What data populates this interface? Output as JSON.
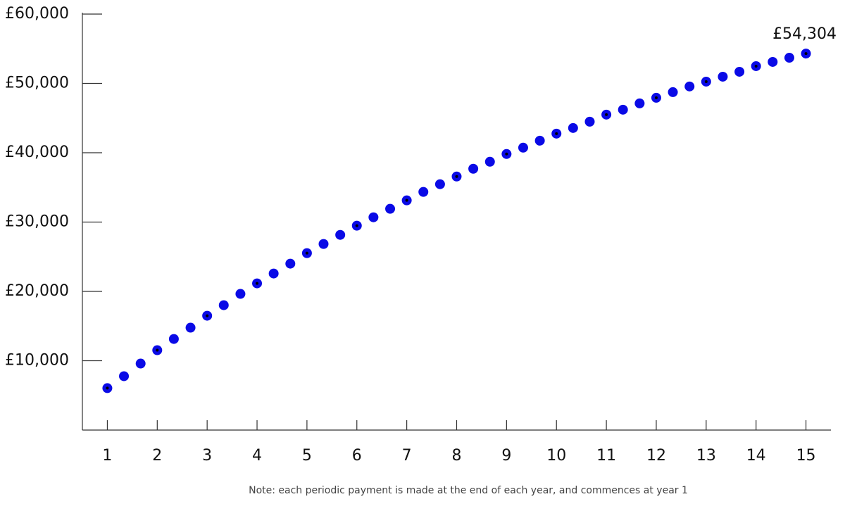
{
  "chart_data": {
    "type": "scatter",
    "note": "Note: each periodic payment is made at the end of each year, and commences at year 1",
    "x": [
      1,
      1.333,
      1.667,
      2,
      2.333,
      2.667,
      3,
      3.333,
      3.667,
      4,
      4.333,
      4.667,
      5,
      5.333,
      5.667,
      6,
      6.333,
      6.667,
      7,
      7.333,
      7.667,
      8,
      8.333,
      8.667,
      9,
      9.333,
      9.667,
      10,
      10.333,
      10.667,
      11,
      11.333,
      11.667,
      12,
      12.333,
      12.667,
      13,
      13.333,
      13.667,
      14,
      14.333,
      14.667,
      15
    ],
    "values": [
      6050,
      7770,
      9590,
      11520,
      13140,
      14770,
      16490,
      18010,
      19640,
      21160,
      22580,
      24000,
      25520,
      26840,
      28150,
      29480,
      30690,
      31910,
      33130,
      34350,
      35460,
      36570,
      37690,
      38700,
      39820,
      40730,
      41740,
      42760,
      43570,
      44480,
      45500,
      46210,
      47120,
      47930,
      48740,
      49560,
      50260,
      50970,
      51680,
      52490,
      53100,
      53700,
      54304
    ],
    "color": "#0a0ae6",
    "annotations": [
      {
        "text": "£54,304",
        "x": 15,
        "y": 54304
      }
    ],
    "xlim": [
      0.5,
      15.5
    ],
    "xticks": [
      1,
      2,
      3,
      4,
      5,
      6,
      7,
      8,
      9,
      10,
      11,
      12,
      13,
      14,
      15
    ],
    "ylim": [
      0,
      60000
    ],
    "yticks": [
      {
        "value": 10000,
        "label": "£10,000"
      },
      {
        "value": 20000,
        "label": "£20,000"
      },
      {
        "value": 30000,
        "label": "£30,000"
      },
      {
        "value": 40000,
        "label": "£40,000"
      },
      {
        "value": 50000,
        "label": "£50,000"
      },
      {
        "value": 60000,
        "label": "£60,000"
      }
    ]
  }
}
